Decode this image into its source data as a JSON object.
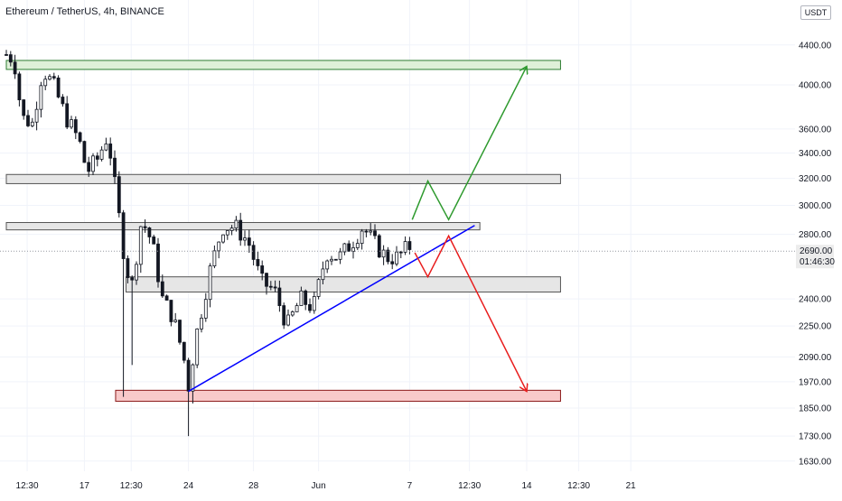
{
  "header": {
    "symbol_title": "Ethereum / TetherUS, 4h, BINANCE",
    "currency": "USDT"
  },
  "colors": {
    "candle": "#131722",
    "grid": "#f0f3fa",
    "trendline": "#0000ff",
    "bullish_path": "#2e9a2e",
    "bearish_path": "#e81c1c",
    "zone_green_fill": "#dff0d8",
    "zone_green_border": "#2e7d32",
    "zone_gray_fill": "#e6e6e6",
    "zone_gray_border": "#555555",
    "zone_red_fill": "#f8c9c9",
    "zone_red_border": "#8b1a1a",
    "current_price_box": "#ececec"
  },
  "chart_data": {
    "type": "candlestick",
    "y_scale": "log",
    "ylim": [
      1580,
      4700
    ],
    "y_ticks": [
      {
        "value": 4400,
        "label": "4400.00"
      },
      {
        "value": 4000,
        "label": "4000.00"
      },
      {
        "value": 3600,
        "label": "3600.00"
      },
      {
        "value": 3400,
        "label": "3400.00"
      },
      {
        "value": 3200,
        "label": "3200.00"
      },
      {
        "value": 3000,
        "label": "3000.00"
      },
      {
        "value": 2800,
        "label": "2800.00"
      },
      {
        "value": 2400,
        "label": "2400.00"
      },
      {
        "value": 2250,
        "label": "2250.00"
      },
      {
        "value": 2090,
        "label": "2090.00"
      },
      {
        "value": 1970,
        "label": "1970.00"
      },
      {
        "value": 1850,
        "label": "1850.00"
      },
      {
        "value": 1730,
        "label": "1730.00"
      },
      {
        "value": 1630,
        "label": "1630.00"
      }
    ],
    "x_ticks": [
      {
        "t": 0.8,
        "label": "12:30"
      },
      {
        "t": 3.0,
        "label": "17"
      },
      {
        "t": 4.8,
        "label": "12:30"
      },
      {
        "t": 7.0,
        "label": "24"
      },
      {
        "t": 9.5,
        "label": "28"
      },
      {
        "t": 12.0,
        "label": "Jun"
      },
      {
        "t": 15.5,
        "label": "7"
      },
      {
        "t": 17.8,
        "label": "12:30"
      },
      {
        "t": 20.0,
        "label": "14"
      },
      {
        "t": 22.0,
        "label": "12:30"
      },
      {
        "t": 24.0,
        "label": "21"
      }
    ],
    "current_price": {
      "value": 2690,
      "price_label": "2690.00",
      "countdown": "01:46:30"
    },
    "ohlc_keypoints": [
      {
        "t": 0.0,
        "price": 4300
      },
      {
        "t": 0.3,
        "price": 4250
      },
      {
        "t": 0.6,
        "price": 3700
      },
      {
        "t": 1.0,
        "price": 3650
      },
      {
        "t": 1.4,
        "price": 4150
      },
      {
        "t": 1.8,
        "price": 4000
      },
      {
        "t": 2.3,
        "price": 3700
      },
      {
        "t": 2.8,
        "price": 3500
      },
      {
        "t": 3.1,
        "price": 3250
      },
      {
        "t": 3.5,
        "price": 3350
      },
      {
        "t": 3.9,
        "price": 3550
      },
      {
        "t": 4.2,
        "price": 3100
      },
      {
        "t": 4.5,
        "price": 2700
      },
      {
        "t": 4.8,
        "price": 2450
      },
      {
        "t": 5.2,
        "price": 2900
      },
      {
        "t": 5.6,
        "price": 2750
      },
      {
        "t": 6.0,
        "price": 2400
      },
      {
        "t": 6.4,
        "price": 2300
      },
      {
        "t": 6.8,
        "price": 2100
      },
      {
        "t": 7.0,
        "price": 1950
      },
      {
        "t": 7.3,
        "price": 2200
      },
      {
        "t": 7.8,
        "price": 2550
      },
      {
        "t": 8.3,
        "price": 2850
      },
      {
        "t": 8.8,
        "price": 2850
      },
      {
        "t": 9.3,
        "price": 2750
      },
      {
        "t": 9.8,
        "price": 2500
      },
      {
        "t": 10.3,
        "price": 2450
      },
      {
        "t": 10.8,
        "price": 2250
      },
      {
        "t": 11.3,
        "price": 2400
      },
      {
        "t": 11.8,
        "price": 2350
      },
      {
        "t": 12.3,
        "price": 2680
      },
      {
        "t": 12.8,
        "price": 2650
      },
      {
        "t": 13.3,
        "price": 2750
      },
      {
        "t": 13.7,
        "price": 2850
      },
      {
        "t": 14.1,
        "price": 2750
      },
      {
        "t": 14.6,
        "price": 2650
      },
      {
        "t": 15.0,
        "price": 2650
      },
      {
        "t": 15.5,
        "price": 2720
      }
    ],
    "wick_extremes": [
      {
        "t": 4.55,
        "low": 1900
      },
      {
        "t": 4.85,
        "low": 2050
      },
      {
        "t": 7.05,
        "low": 1730
      },
      {
        "t": 7.15,
        "low": 1870
      }
    ],
    "zones": [
      {
        "color": "green",
        "t_from": 0.0,
        "t_to": 21.3,
        "price_low": 4150,
        "price_high": 4240
      },
      {
        "color": "gray",
        "t_from": 0.0,
        "t_to": 21.3,
        "price_low": 3160,
        "price_high": 3230
      },
      {
        "color": "gray",
        "t_from": 0.0,
        "t_to": 18.2,
        "price_low": 2830,
        "price_high": 2880
      },
      {
        "color": "gray",
        "t_from": 4.6,
        "t_to": 21.3,
        "price_low": 2440,
        "price_high": 2530
      },
      {
        "color": "red",
        "t_from": 4.2,
        "t_to": 21.3,
        "price_low": 1880,
        "price_high": 1930
      }
    ],
    "trendline": [
      {
        "t": 7.0,
        "price": 1925
      },
      {
        "t": 18.0,
        "price": 2860
      }
    ],
    "bullish_path": [
      {
        "t": 15.6,
        "price": 2900
      },
      {
        "t": 16.2,
        "price": 3180
      },
      {
        "t": 17.0,
        "price": 2900
      },
      {
        "t": 20.0,
        "price": 4180
      }
    ],
    "bearish_path": [
      {
        "t": 15.7,
        "price": 2680
      },
      {
        "t": 16.2,
        "price": 2530
      },
      {
        "t": 17.0,
        "price": 2790
      },
      {
        "t": 20.0,
        "price": 1925
      }
    ]
  }
}
